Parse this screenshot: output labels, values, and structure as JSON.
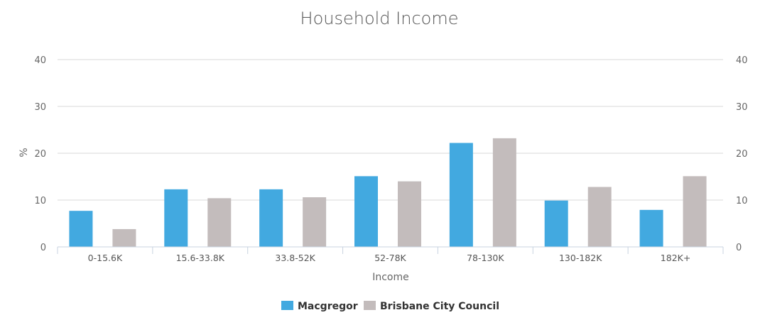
{
  "chart_data": {
    "type": "bar",
    "title": "Household Income",
    "xlabel": "Income",
    "ylabel": "%",
    "ylim": [
      0,
      40
    ],
    "yticks": [
      0,
      10,
      20,
      30,
      40
    ],
    "grid": true,
    "legend_position": "bottom",
    "categories": [
      "0-15.6K",
      "15.6-33.8K",
      "33.8-52K",
      "52-78K",
      "78-130K",
      "130-182K",
      "182K+"
    ],
    "series": [
      {
        "name": "Macgregor",
        "color": "#42a9e0",
        "values": [
          7.7,
          12.3,
          12.3,
          15.1,
          22.2,
          9.9,
          7.9
        ]
      },
      {
        "name": "Brisbane City Council",
        "color": "#c3bcbc",
        "values": [
          3.8,
          10.4,
          10.6,
          14.0,
          23.2,
          12.8,
          15.1
        ]
      }
    ]
  }
}
